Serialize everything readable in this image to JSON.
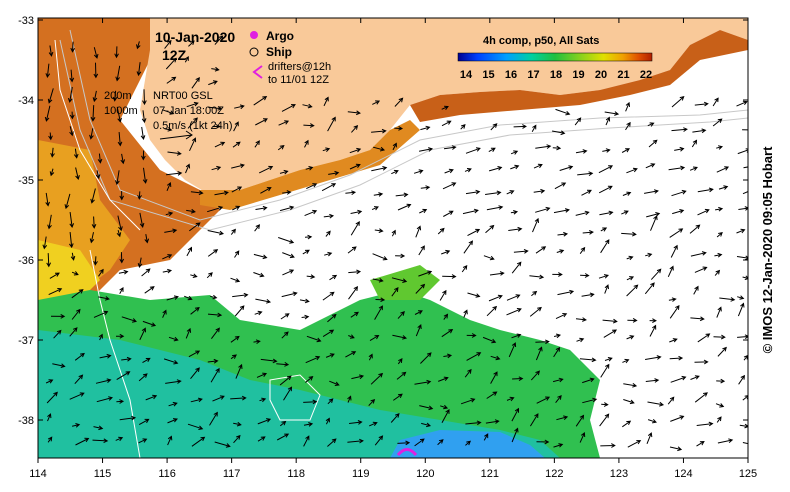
{
  "map": {
    "date": "10-Jan-2020",
    "time": "12Z",
    "legend_markers": {
      "argo": "Argo",
      "ship": "Ship",
      "drifters_line1": "drifters@12h",
      "drifters_line2": "to 11/01 12Z"
    },
    "contours": {
      "label_200": "200m",
      "label_1000": "1000m"
    },
    "currents": {
      "product": "NRT00 GSL",
      "date": "07-Jan 18:00Z",
      "scale": "0.5m/s (1kt 24h)"
    },
    "colorbar": {
      "title": "4h comp, p50, All Sats",
      "ticks": [
        "14",
        "15",
        "16",
        "17",
        "18",
        "19",
        "20",
        "21",
        "22"
      ],
      "colors": [
        "#000090",
        "#0040ff",
        "#00a0ff",
        "#00d0a0",
        "#20c040",
        "#80d020",
        "#e0e000",
        "#f0a000",
        "#e05000",
        "#b02000"
      ]
    },
    "axes": {
      "lon_ticks": [
        "114",
        "115",
        "116",
        "117",
        "118",
        "119",
        "120",
        "121",
        "122",
        "123",
        "124",
        "125"
      ],
      "lat_ticks": [
        "-33",
        "-34",
        "-35",
        "-36",
        "-37",
        "-38"
      ]
    },
    "credit": "© IMOS 12-Jan-2020 09:05 Hobart",
    "colors": {
      "land": "#f9c999",
      "frame": "#000000"
    }
  }
}
